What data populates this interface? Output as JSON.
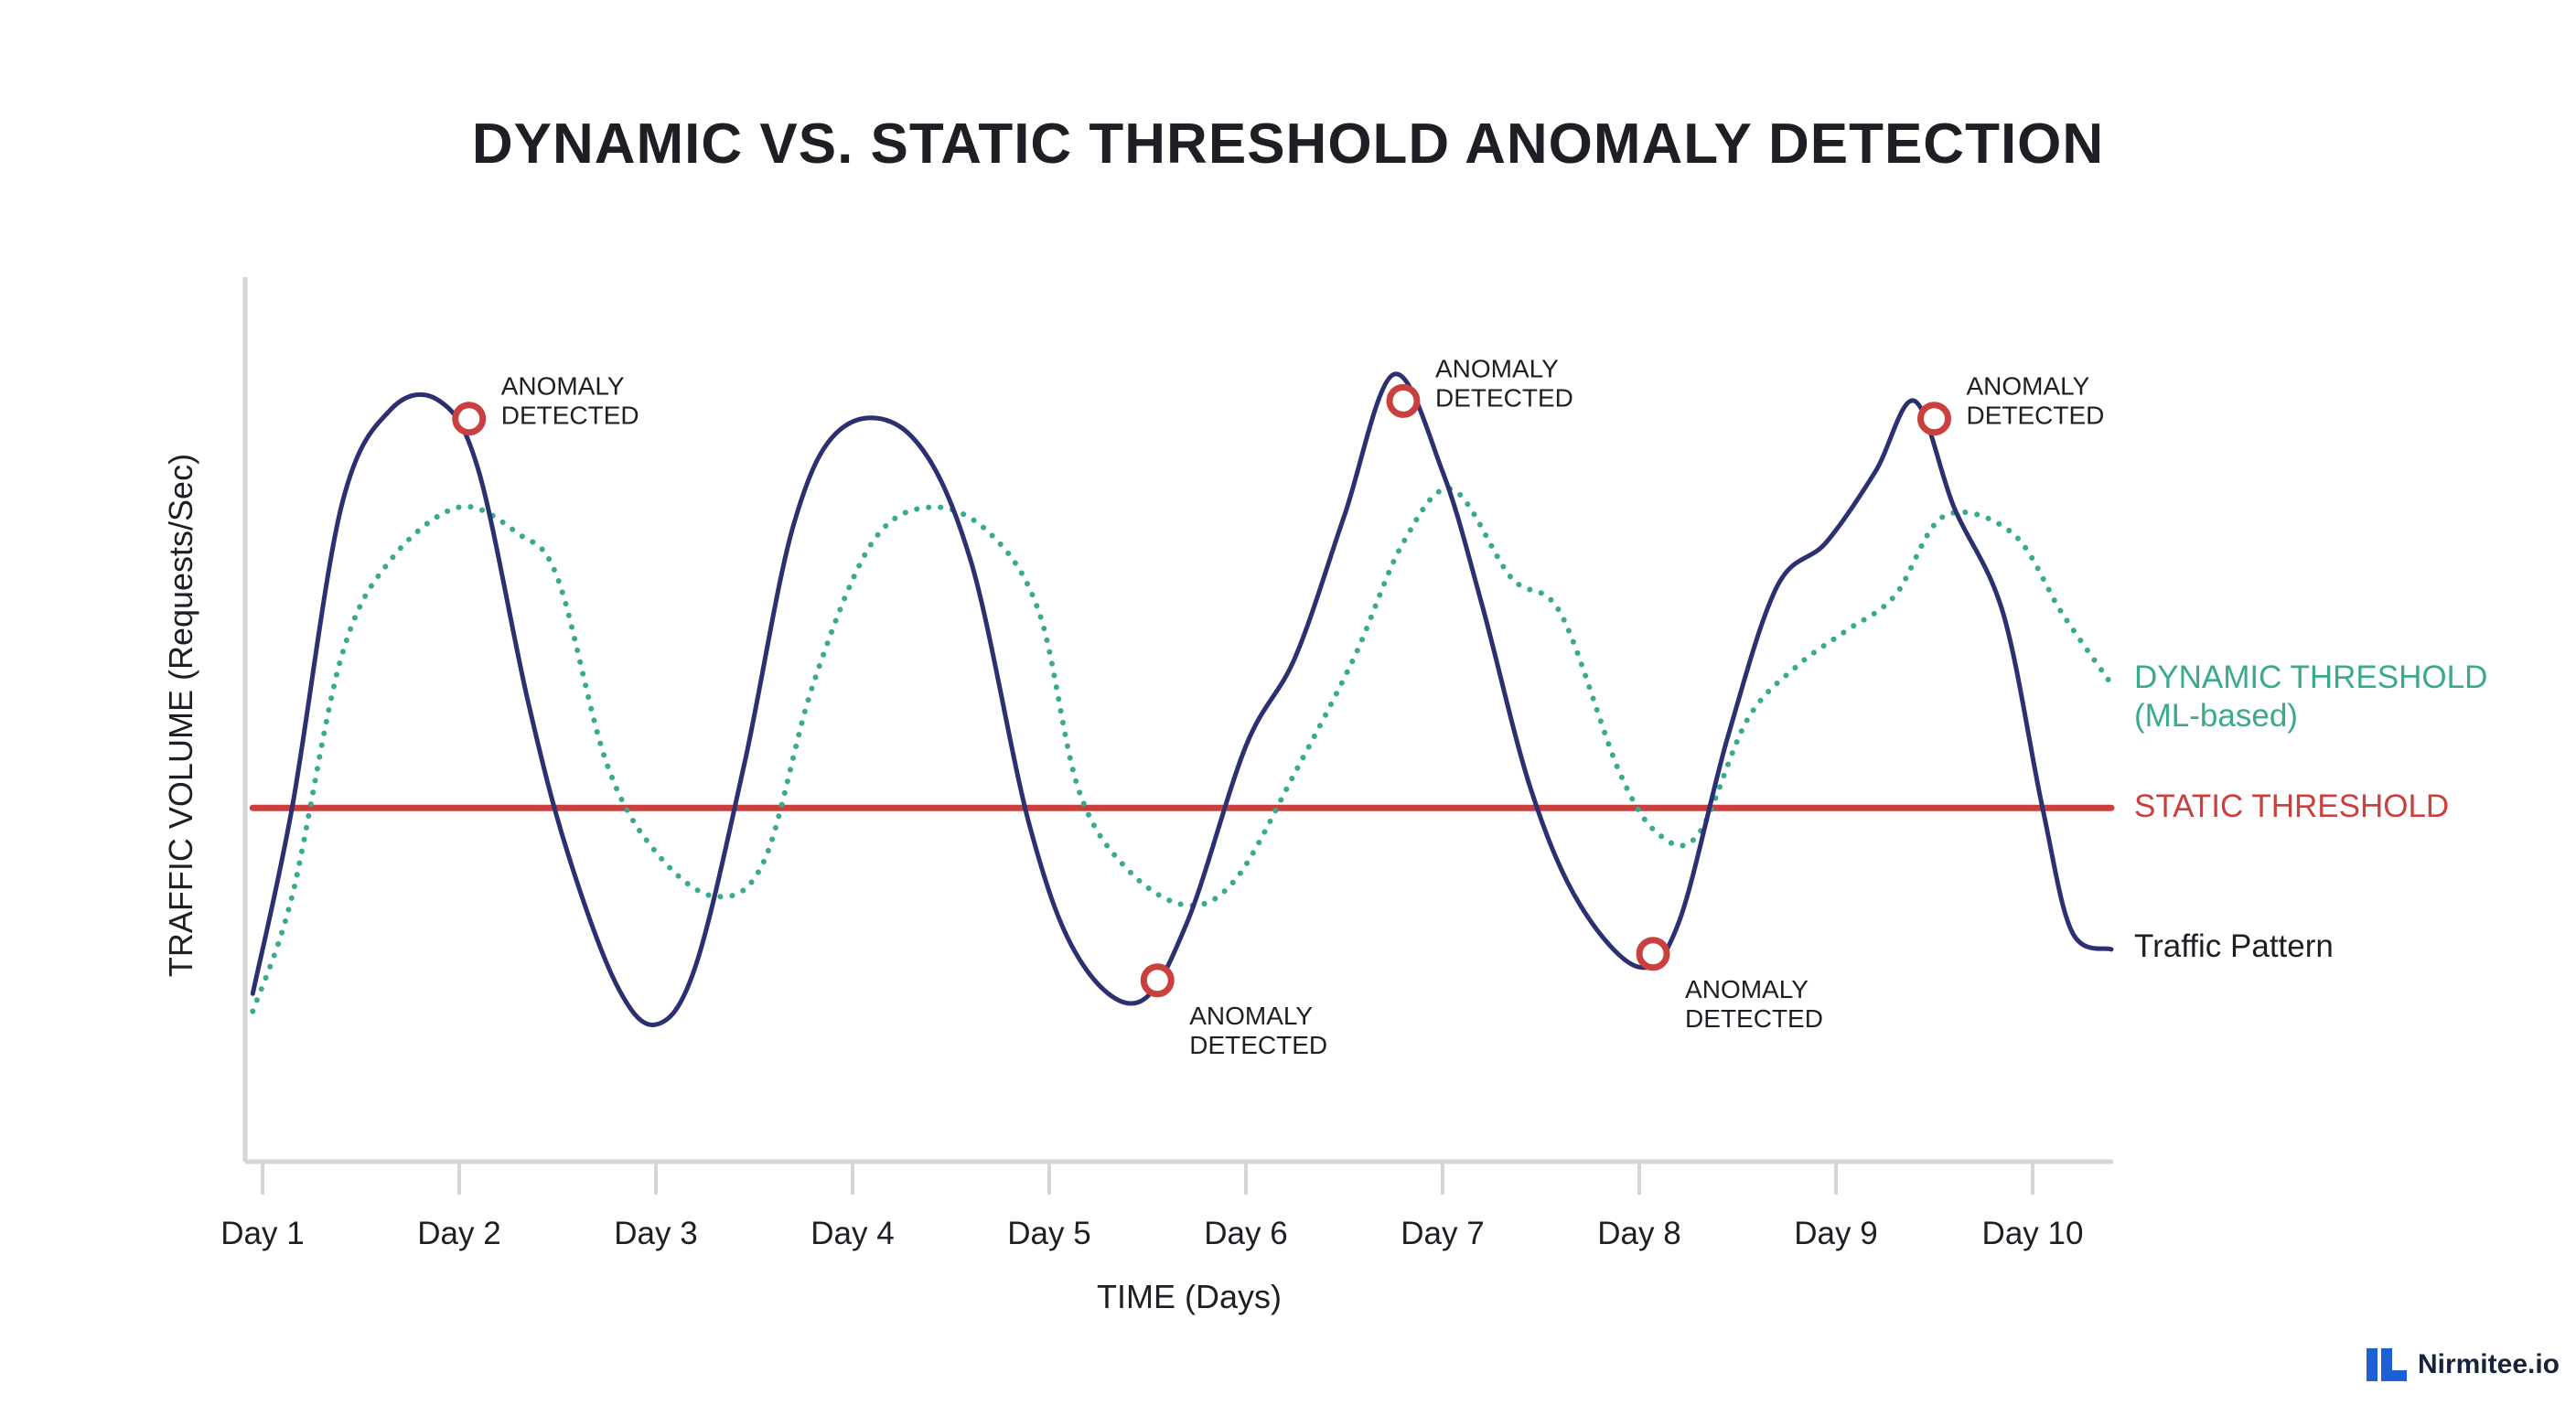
{
  "colors": {
    "traffic": "#2b3170",
    "dynamic": "#3aa98e",
    "static": "#c9403f",
    "anomaly_marker": "#c9403f",
    "axis": "#d5d5d5",
    "text": "#1e1f24"
  },
  "brand": {
    "name": "Nirmitee.io",
    "icon": "nirmitee-logo-icon"
  },
  "chart_data": {
    "type": "line",
    "title": "DYNAMIC VS. STATIC THRESHOLD ANOMALY DETECTION",
    "xlabel": "TIME (Days)",
    "ylabel": "TRAFFIC VOLUME (Requests/Sec)",
    "x_ticks": [
      "Day 1",
      "Day 2",
      "Day 3",
      "Day 4",
      "Day 5",
      "Day 6",
      "Day 7",
      "Day 8",
      "Day 9",
      "Day 10"
    ],
    "xlim": [
      0.95,
      10.4
    ],
    "ylim": [
      0,
      100
    ],
    "grid": false,
    "legend_placement": "right",
    "series": [
      {
        "name": "Traffic Pattern",
        "style": "solid",
        "points": [
          [
            0.95,
            19
          ],
          [
            1.15,
            40
          ],
          [
            1.4,
            74
          ],
          [
            1.65,
            85
          ],
          [
            1.9,
            86
          ],
          [
            2.1,
            78
          ],
          [
            2.35,
            52
          ],
          [
            2.55,
            35
          ],
          [
            2.8,
            20
          ],
          [
            3.0,
            15.5
          ],
          [
            3.2,
            22
          ],
          [
            3.45,
            45
          ],
          [
            3.7,
            72
          ],
          [
            3.95,
            83
          ],
          [
            4.3,
            82
          ],
          [
            4.6,
            68
          ],
          [
            4.9,
            38
          ],
          [
            5.15,
            23
          ],
          [
            5.45,
            18
          ],
          [
            5.7,
            27
          ],
          [
            6.0,
            47
          ],
          [
            6.25,
            57
          ],
          [
            6.5,
            73
          ],
          [
            6.75,
            89
          ],
          [
            7.0,
            78
          ],
          [
            7.2,
            63
          ],
          [
            7.45,
            42
          ],
          [
            7.7,
            29
          ],
          [
            8.0,
            22
          ],
          [
            8.2,
            27
          ],
          [
            8.45,
            48
          ],
          [
            8.7,
            65
          ],
          [
            8.95,
            70
          ],
          [
            9.2,
            78
          ],
          [
            9.4,
            86
          ],
          [
            9.6,
            74
          ],
          [
            9.85,
            62
          ],
          [
            10.05,
            40
          ],
          [
            10.2,
            26
          ],
          [
            10.4,
            24
          ]
        ]
      },
      {
        "name": "DYNAMIC THRESHOLD (ML-based)",
        "style": "dotted",
        "points": [
          [
            0.95,
            17
          ],
          [
            1.15,
            30
          ],
          [
            1.4,
            57
          ],
          [
            1.65,
            68
          ],
          [
            2.0,
            74
          ],
          [
            2.3,
            71
          ],
          [
            2.5,
            66
          ],
          [
            2.75,
            45
          ],
          [
            3.0,
            35
          ],
          [
            3.3,
            30
          ],
          [
            3.55,
            34
          ],
          [
            3.8,
            54
          ],
          [
            4.1,
            70
          ],
          [
            4.4,
            74
          ],
          [
            4.7,
            71
          ],
          [
            4.95,
            62
          ],
          [
            5.15,
            42
          ],
          [
            5.4,
            33
          ],
          [
            5.7,
            29
          ],
          [
            5.95,
            32
          ],
          [
            6.25,
            44
          ],
          [
            6.55,
            57
          ],
          [
            6.8,
            70
          ],
          [
            7.05,
            76
          ],
          [
            7.35,
            66
          ],
          [
            7.6,
            62
          ],
          [
            7.9,
            44
          ],
          [
            8.1,
            37
          ],
          [
            8.3,
            37
          ],
          [
            8.55,
            50
          ],
          [
            8.8,
            56
          ],
          [
            9.05,
            60
          ],
          [
            9.3,
            64
          ],
          [
            9.55,
            73
          ],
          [
            9.9,
            71
          ],
          [
            10.15,
            62
          ],
          [
            10.4,
            54
          ]
        ]
      },
      {
        "name": "STATIC THRESHOLD",
        "style": "solid",
        "points": [
          [
            0.95,
            40
          ],
          [
            10.4,
            40
          ]
        ]
      }
    ],
    "annotations": [
      {
        "x": 2.05,
        "y": 84,
        "text_line1": "ANOMALY",
        "text_line2": "DETECTED",
        "label_side": "above-right"
      },
      {
        "x": 5.55,
        "y": 20.5,
        "text_line1": "ANOMALY",
        "text_line2": "DETECTED",
        "label_side": "below-right"
      },
      {
        "x": 6.8,
        "y": 86,
        "text_line1": "ANOMALY",
        "text_line2": "DETECTED",
        "label_side": "above-right"
      },
      {
        "x": 8.07,
        "y": 23.5,
        "text_line1": "ANOMALY",
        "text_line2": "DETECTED",
        "label_side": "below-right"
      },
      {
        "x": 9.5,
        "y": 84,
        "text_line1": "ANOMALY",
        "text_line2": "DETECTED",
        "label_side": "above-right"
      }
    ],
    "legend": [
      {
        "series": "DYNAMIC THRESHOLD (ML-based)",
        "line1": "DYNAMIC THRESHOLD",
        "line2": "(ML-based)"
      },
      {
        "series": "STATIC THRESHOLD",
        "line1": "STATIC THRESHOLD"
      },
      {
        "series": "Traffic Pattern",
        "line1": "Traffic Pattern"
      }
    ]
  }
}
